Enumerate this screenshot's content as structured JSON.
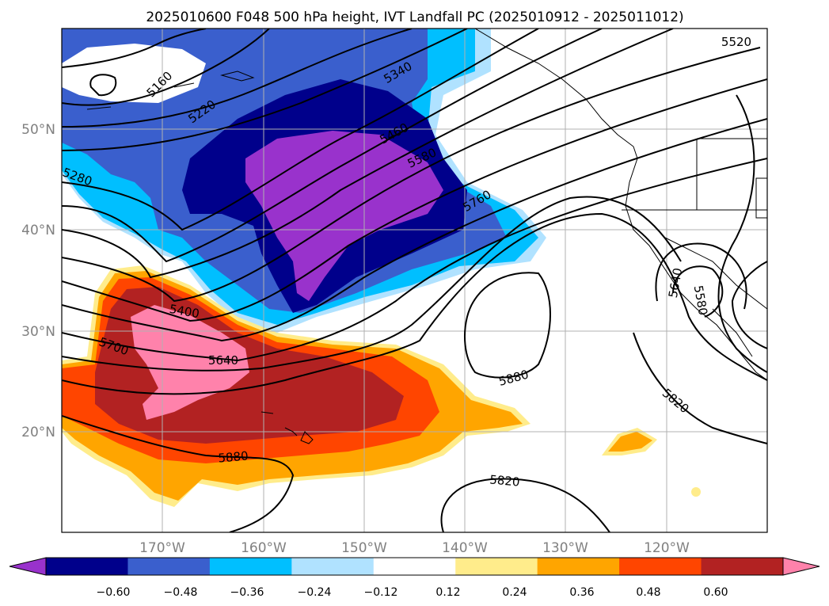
{
  "title": "2025010600 F048 500 hPa height, IVT Landfall PC (2025010912 - 2025011012)",
  "map": {
    "lon_labels": [
      "170°W",
      "160°W",
      "150°W",
      "140°W",
      "130°W",
      "120°W"
    ],
    "lat_labels": [
      "50°N",
      "40°N",
      "30°N",
      "20°N"
    ],
    "contour_labels": [
      "5160",
      "5220",
      "5340",
      "5460",
      "5580",
      "5760",
      "5520",
      "5280",
      "5400",
      "5700",
      "5640",
      "5880",
      "5880",
      "5820",
      "5820",
      "5640",
      "5580"
    ]
  },
  "colorbar": {
    "ticks": [
      "−0.60",
      "−0.48",
      "−0.36",
      "−0.24",
      "−0.12",
      "0.12",
      "0.24",
      "0.36",
      "0.48",
      "0.60"
    ],
    "colors": [
      "#9932CC",
      "#00008B",
      "#3A5FCD",
      "#00BFFF",
      "#B0E2FF",
      "#FFFFFF",
      "#FFEC8B",
      "#FFA500",
      "#FF4500",
      "#B22222",
      "#FF82AB"
    ]
  }
}
